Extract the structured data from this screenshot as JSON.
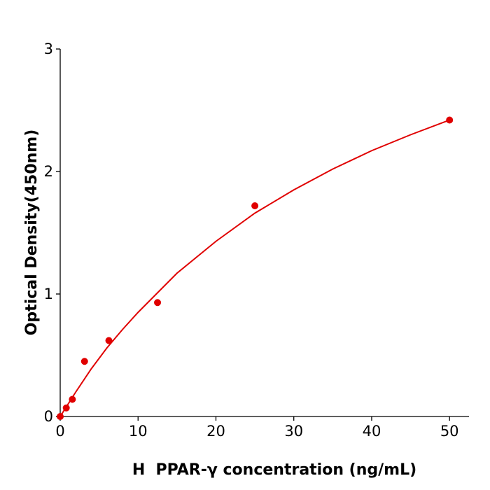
{
  "chart_data": {
    "type": "scatter",
    "xlabel": "H  PPAR-γ concentration (ng/mL)",
    "ylabel": "Optical Density(450nm)",
    "xlim": [
      0,
      52.5
    ],
    "ylim": [
      0,
      3
    ],
    "xticks": [
      0,
      10,
      20,
      30,
      40,
      50
    ],
    "yticks": [
      0,
      1,
      2,
      3
    ],
    "series": [
      {
        "type": "scatter",
        "color": "#e00000",
        "x": [
          0,
          0.78,
          1.56,
          3.125,
          6.25,
          12.5,
          25,
          50
        ],
        "values": [
          0,
          0.07,
          0.14,
          0.45,
          0.62,
          0.93,
          1.72,
          2.42
        ]
      },
      {
        "type": "line",
        "color": "#e00000",
        "x": [
          0,
          2,
          4,
          6,
          8,
          10,
          15,
          20,
          25,
          30,
          35,
          40,
          45,
          50
        ],
        "values": [
          0,
          0.2,
          0.39,
          0.56,
          0.71,
          0.85,
          1.17,
          1.43,
          1.66,
          1.85,
          2.02,
          2.17,
          2.3,
          2.42
        ]
      }
    ]
  }
}
